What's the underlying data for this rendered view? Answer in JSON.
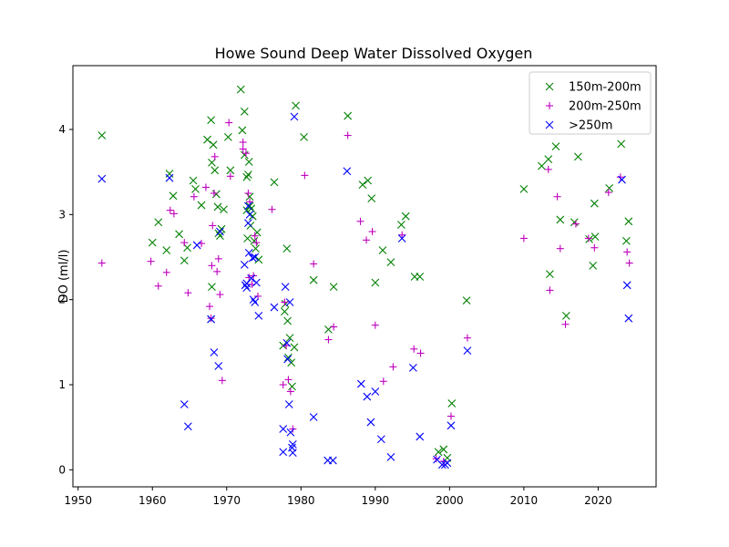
{
  "chart_data": {
    "type": "scatter",
    "title": "Howe Sound Deep Water Dissolved Oxygen",
    "xlabel": "",
    "ylabel": "DO (ml/l)",
    "xlim": [
      1949.3,
      2027.8
    ],
    "ylim": [
      -0.2,
      4.75
    ],
    "xticks": [
      1950,
      1960,
      1970,
      1980,
      1990,
      2000,
      2010,
      2020
    ],
    "yticks": [
      0,
      1,
      2,
      3,
      4
    ],
    "grid": false,
    "legend_position": "top-right",
    "series": [
      {
        "name": "150m-200m",
        "marker": "x",
        "color": "#008000",
        "points": [
          [
            1953.2,
            3.93
          ],
          [
            1960.0,
            2.67
          ],
          [
            1960.8,
            2.91
          ],
          [
            1961.9,
            2.58
          ],
          [
            1962.3,
            3.48
          ],
          [
            1962.8,
            3.22
          ],
          [
            1963.6,
            2.77
          ],
          [
            1964.3,
            2.46
          ],
          [
            1964.7,
            2.61
          ],
          [
            1965.5,
            3.4
          ],
          [
            1965.8,
            3.3
          ],
          [
            1966.6,
            3.11
          ],
          [
            1967.4,
            3.88
          ],
          [
            1967.9,
            4.11
          ],
          [
            1968.0,
            3.61
          ],
          [
            1968.2,
            3.82
          ],
          [
            1968.4,
            3.52
          ],
          [
            1968.6,
            3.24
          ],
          [
            1968.8,
            3.09
          ],
          [
            1969.1,
            2.75
          ],
          [
            1968.9,
            2.78
          ],
          [
            1969.3,
            2.83
          ],
          [
            1969.6,
            3.06
          ],
          [
            1968.0,
            2.15
          ],
          [
            1967.9,
            1.77
          ],
          [
            1970.2,
            3.91
          ],
          [
            1970.5,
            3.52
          ],
          [
            1971.9,
            4.47
          ],
          [
            1972.1,
            3.99
          ],
          [
            1972.4,
            4.21
          ],
          [
            1972.4,
            3.7
          ],
          [
            1972.7,
            3.44
          ],
          [
            1972.9,
            3.47
          ],
          [
            1973.0,
            3.62
          ],
          [
            1973.1,
            3.1
          ],
          [
            1972.7,
            3.05
          ],
          [
            1973.1,
            3.21
          ],
          [
            1973.2,
            2.87
          ],
          [
            1973.3,
            3.07
          ],
          [
            1972.8,
            2.72
          ],
          [
            1973.5,
            2.98
          ],
          [
            1973.7,
            2.69
          ],
          [
            1973.9,
            2.6
          ],
          [
            1974.1,
            2.79
          ],
          [
            1974.3,
            2.47
          ],
          [
            1976.4,
            3.38
          ],
          [
            1978.1,
            2.6
          ],
          [
            1977.9,
            1.95
          ],
          [
            1977.8,
            1.86
          ],
          [
            1978.2,
            1.75
          ],
          [
            1978.5,
            1.55
          ],
          [
            1977.6,
            1.46
          ],
          [
            1978.3,
            1.32
          ],
          [
            1978.7,
            1.26
          ],
          [
            1979.1,
            1.44
          ],
          [
            1978.8,
            0.98
          ],
          [
            1979.3,
            4.28
          ],
          [
            1980.4,
            3.91
          ],
          [
            1981.7,
            2.23
          ],
          [
            1983.7,
            1.65
          ],
          [
            1984.4,
            2.15
          ],
          [
            1986.3,
            4.16
          ],
          [
            1988.3,
            3.35
          ],
          [
            1989.0,
            3.4
          ],
          [
            1989.5,
            3.19
          ],
          [
            1990.0,
            2.2
          ],
          [
            1991.0,
            2.58
          ],
          [
            1992.1,
            2.44
          ],
          [
            1993.5,
            2.88
          ],
          [
            1994.1,
            2.98
          ],
          [
            1995.3,
            2.27
          ],
          [
            1996.0,
            2.27
          ],
          [
            1998.5,
            0.21
          ],
          [
            1999.2,
            0.24
          ],
          [
            1999.7,
            0.14
          ],
          [
            2000.3,
            0.78
          ],
          [
            2002.3,
            1.99
          ],
          [
            2010.0,
            3.3
          ],
          [
            2012.4,
            3.57
          ],
          [
            2013.3,
            3.65
          ],
          [
            2013.5,
            2.3
          ],
          [
            2014.3,
            3.8
          ],
          [
            2014.9,
            2.94
          ],
          [
            2015.7,
            1.81
          ],
          [
            2016.8,
            2.91
          ],
          [
            2017.3,
            3.68
          ],
          [
            2018.8,
            2.71
          ],
          [
            2019.3,
            2.4
          ],
          [
            2019.5,
            3.13
          ],
          [
            2019.6,
            2.74
          ],
          [
            2021.5,
            3.31
          ],
          [
            2023.1,
            3.83
          ],
          [
            2023.8,
            2.69
          ],
          [
            2024.1,
            2.92
          ]
        ]
      },
      {
        "name": "200m-250m",
        "marker": "+",
        "color": "#bf00bf",
        "points": [
          [
            1953.2,
            2.43
          ],
          [
            1959.8,
            2.45
          ],
          [
            1960.8,
            2.16
          ],
          [
            1961.9,
            2.32
          ],
          [
            1962.4,
            3.05
          ],
          [
            1962.9,
            3.01
          ],
          [
            1964.3,
            2.67
          ],
          [
            1964.8,
            2.08
          ],
          [
            1965.6,
            3.21
          ],
          [
            1966.6,
            2.66
          ],
          [
            1967.2,
            3.32
          ],
          [
            1967.7,
            1.92
          ],
          [
            1967.9,
            1.78
          ],
          [
            1968.0,
            2.4
          ],
          [
            1968.1,
            2.87
          ],
          [
            1968.3,
            3.25
          ],
          [
            1968.4,
            3.68
          ],
          [
            1968.7,
            2.33
          ],
          [
            1968.9,
            2.48
          ],
          [
            1969.1,
            2.06
          ],
          [
            1969.4,
            1.05
          ],
          [
            1970.3,
            4.08
          ],
          [
            1970.5,
            3.45
          ],
          [
            1972.2,
            3.77
          ],
          [
            1972.2,
            3.85
          ],
          [
            1972.6,
            3.72
          ],
          [
            1972.9,
            3.25
          ],
          [
            1973.1,
            3.15
          ],
          [
            1973.0,
            2.26
          ],
          [
            1973.4,
            2.18
          ],
          [
            1973.6,
            2.28
          ],
          [
            1973.8,
            2.75
          ],
          [
            1974.0,
            2.67
          ],
          [
            1974.2,
            2.04
          ],
          [
            1976.1,
            3.06
          ],
          [
            1977.6,
            1.0
          ],
          [
            1977.8,
            1.97
          ],
          [
            1978.0,
            1.46
          ],
          [
            1978.3,
            1.06
          ],
          [
            1978.6,
            0.92
          ],
          [
            1978.9,
            0.48
          ],
          [
            1980.5,
            3.46
          ],
          [
            1981.7,
            2.42
          ],
          [
            1983.7,
            1.53
          ],
          [
            1984.4,
            1.68
          ],
          [
            1986.3,
            3.93
          ],
          [
            1988.0,
            2.92
          ],
          [
            1988.8,
            2.7
          ],
          [
            1989.6,
            2.8
          ],
          [
            1990.0,
            1.7
          ],
          [
            1991.1,
            1.04
          ],
          [
            1992.4,
            1.21
          ],
          [
            1993.6,
            2.76
          ],
          [
            1995.2,
            1.42
          ],
          [
            1996.1,
            1.37
          ],
          [
            1998.2,
            0.13
          ],
          [
            1999.2,
            0.1
          ],
          [
            2000.2,
            0.63
          ],
          [
            2002.4,
            1.55
          ],
          [
            2010.0,
            2.72
          ],
          [
            2013.3,
            3.53
          ],
          [
            2013.5,
            2.11
          ],
          [
            2014.5,
            3.21
          ],
          [
            2014.9,
            2.6
          ],
          [
            2015.6,
            1.71
          ],
          [
            2017.0,
            2.89
          ],
          [
            2018.7,
            2.72
          ],
          [
            2019.5,
            2.61
          ],
          [
            2021.4,
            3.26
          ],
          [
            2023.0,
            3.44
          ],
          [
            2023.9,
            2.56
          ],
          [
            2024.2,
            2.43
          ]
        ]
      },
      {
        "name": ">250m",
        "marker": "x",
        "color": "#0000ff",
        "points": [
          [
            1953.2,
            3.42
          ],
          [
            1962.3,
            3.43
          ],
          [
            1964.3,
            0.77
          ],
          [
            1964.8,
            0.51
          ],
          [
            1966.0,
            2.64
          ],
          [
            1967.9,
            1.77
          ],
          [
            1968.3,
            1.38
          ],
          [
            1968.9,
            1.22
          ],
          [
            1969.1,
            2.8
          ],
          [
            1972.4,
            2.41
          ],
          [
            1972.5,
            2.17
          ],
          [
            1972.7,
            2.14
          ],
          [
            1972.7,
            2.19
          ],
          [
            1972.9,
            3.1
          ],
          [
            1972.9,
            2.9
          ],
          [
            1973.1,
            3.0
          ],
          [
            1973.0,
            2.55
          ],
          [
            1973.3,
            2.25
          ],
          [
            1973.5,
            2.49
          ],
          [
            1973.6,
            2.0
          ],
          [
            1973.8,
            1.97
          ],
          [
            1973.8,
            2.5
          ],
          [
            1974.0,
            2.2
          ],
          [
            1974.3,
            1.81
          ],
          [
            1976.4,
            1.91
          ],
          [
            1977.6,
            0.48
          ],
          [
            1977.6,
            0.21
          ],
          [
            1977.9,
            2.15
          ],
          [
            1978.1,
            1.49
          ],
          [
            1978.2,
            1.3
          ],
          [
            1978.4,
            0.77
          ],
          [
            1978.5,
            1.97
          ],
          [
            1978.6,
            0.44
          ],
          [
            1978.8,
            0.26
          ],
          [
            1978.9,
            0.3
          ],
          [
            1978.9,
            0.2
          ],
          [
            1979.1,
            4.15
          ],
          [
            1981.7,
            0.62
          ],
          [
            1983.6,
            0.11
          ],
          [
            1984.3,
            0.11
          ],
          [
            1986.2,
            3.51
          ],
          [
            1988.1,
            1.01
          ],
          [
            1988.9,
            0.86
          ],
          [
            1989.4,
            0.56
          ],
          [
            1990.0,
            0.92
          ],
          [
            1990.8,
            0.36
          ],
          [
            1992.1,
            0.15
          ],
          [
            1993.6,
            2.72
          ],
          [
            1995.1,
            1.2
          ],
          [
            1996.0,
            0.39
          ],
          [
            1998.3,
            0.12
          ],
          [
            1999.0,
            0.06
          ],
          [
            1999.4,
            0.06
          ],
          [
            1999.7,
            0.08
          ],
          [
            2000.2,
            0.52
          ],
          [
            2002.4,
            1.4
          ],
          [
            2023.2,
            3.41
          ],
          [
            2023.9,
            2.17
          ],
          [
            2024.1,
            1.78
          ]
        ]
      }
    ]
  }
}
